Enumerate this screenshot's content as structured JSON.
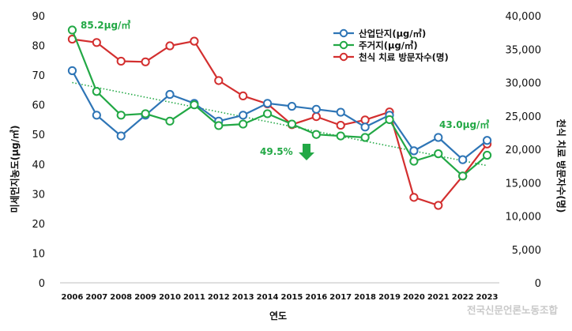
{
  "chart_data": {
    "type": "line",
    "xlabel": "연도",
    "ylabel": "미세먼지농도(μg/㎥)",
    "ylabel_right": "천식 치료 방문자수(명)",
    "categories": [
      "2006",
      "2007",
      "2008",
      "2009",
      "2010",
      "2011",
      "2012",
      "2013",
      "2014",
      "2015",
      "2016",
      "2017",
      "2018",
      "2019",
      "2020",
      "2021",
      "2022",
      "2023"
    ],
    "ylim": [
      0,
      90
    ],
    "yticks": [
      "0",
      "10",
      "20",
      "30",
      "40",
      "50",
      "60",
      "70",
      "80",
      "90"
    ],
    "ylim_right": [
      0,
      40000
    ],
    "yticks_right": [
      "0",
      "5,000",
      "10,000",
      "15,000",
      "20,000",
      "25,000",
      "30,000",
      "35,000",
      "40,000"
    ],
    "series": [
      {
        "name": "산업단지(μg/㎥)",
        "axis": "left",
        "color": "#2e75b6",
        "values": [
          71.5,
          56.5,
          49.5,
          56.5,
          63.5,
          60.5,
          54.5,
          56.5,
          60.5,
          59.5,
          58.5,
          57.5,
          52.5,
          56.5,
          44.5,
          49,
          41.5,
          48
        ]
      },
      {
        "name": "주거지(μg/㎥)",
        "axis": "left",
        "color": "#22a845",
        "values": [
          85.2,
          64.5,
          56.5,
          57,
          54.5,
          60,
          53,
          53.5,
          57,
          53.5,
          50,
          49.5,
          49,
          55,
          41,
          43.5,
          36,
          43
        ]
      },
      {
        "name": "천식 치료 방문자수(명)",
        "axis": "right",
        "color": "#d32f2f",
        "values": [
          36500,
          36000,
          33200,
          33100,
          35500,
          36200,
          30300,
          28000,
          26800,
          23700,
          24900,
          23600,
          24400,
          25600,
          12800,
          11600,
          16000,
          20800
        ]
      }
    ],
    "trendline": {
      "color": "#22a845",
      "start": 67.5,
      "end": 39.5
    },
    "annotations": {
      "start_value": "85.2μg/㎥",
      "end_value": "43.0μg/㎥",
      "reduction": "49.5%"
    },
    "grid": false,
    "legend_position": "top-right"
  },
  "watermark": "전국신문언론노동조합"
}
